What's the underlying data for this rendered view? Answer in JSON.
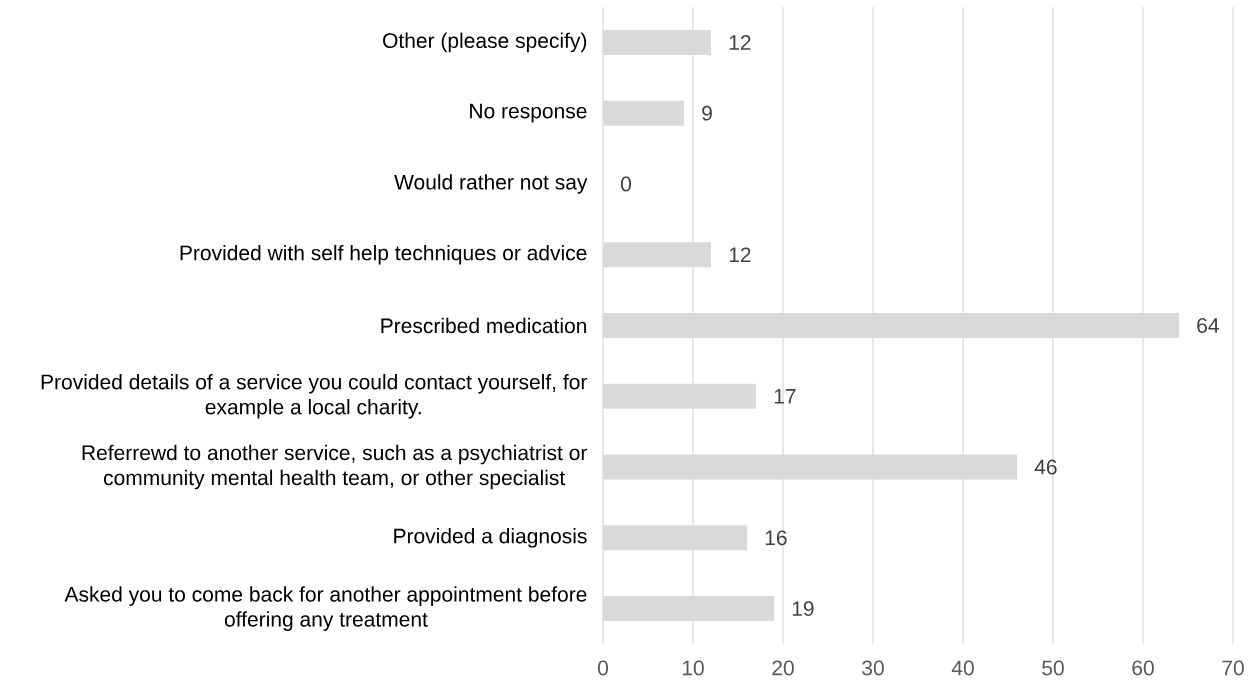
{
  "chart_data": {
    "type": "bar",
    "orientation": "horizontal",
    "categories": [
      "Other (please specify)",
      "No response",
      "Would rather not say",
      "Provided with self help techniques or advice",
      "Prescribed medication",
      "Provided details of a service you could contact yourself, for example a local charity.",
      "Referrewd to another service, such as a psychiatrist or community mental health team, or other specialist",
      "Provided a diagnosis",
      "Asked you to come back for another appointment before offering any treatment"
    ],
    "values": [
      12,
      9,
      0,
      12,
      64,
      17,
      46,
      16,
      19
    ],
    "color": "#d9d9d9",
    "xlim": [
      0,
      70
    ],
    "xticks": [
      0,
      10,
      20,
      30,
      40,
      50,
      60,
      70
    ],
    "grid": "x",
    "data_labels": true
  }
}
